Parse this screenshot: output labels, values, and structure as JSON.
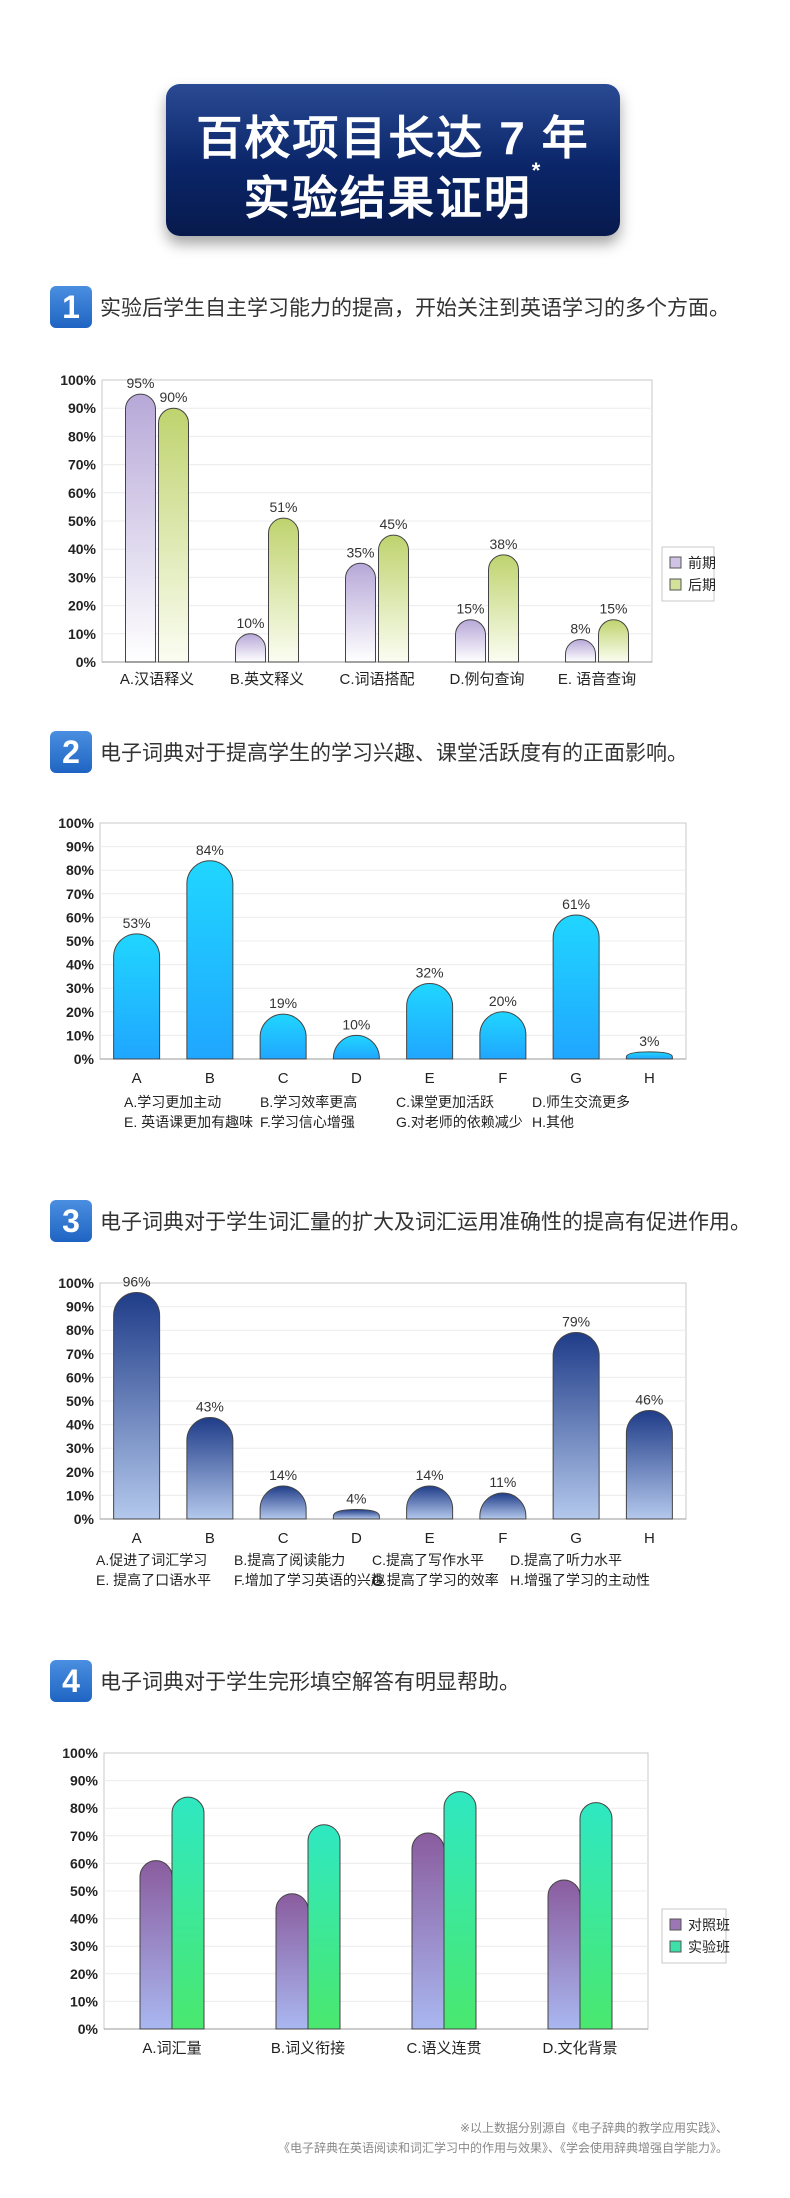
{
  "header": {
    "line1": "百校项目长达 7 年",
    "line2": "实验结果证明",
    "mark": "*"
  },
  "sections": [
    {
      "num": "1",
      "text": "实验后学生自主学习能力的提高，开始关注到英语学习的多个方面。"
    },
    {
      "num": "2",
      "text": "电子词典对于提高学生的学习兴趣、课堂活跃度有的正面影响。"
    },
    {
      "num": "3",
      "text": "电子词典对于学生词汇量的扩大及词汇运用准确性的提高有促进作用。"
    },
    {
      "num": "4",
      "text": "电子词典对于学生完形填空解答有明显帮助。"
    }
  ],
  "chart_data": [
    {
      "type": "bar",
      "categories": [
        "A.汉语释义",
        "B.英文释义",
        "C.词语搭配",
        "D.例句查询",
        "E. 语音查询"
      ],
      "series": [
        {
          "name": "前期",
          "values": [
            95,
            10,
            35,
            15,
            8
          ],
          "labels": [
            "95%",
            "10%",
            "35%",
            "15%",
            "8%"
          ]
        },
        {
          "name": "后期",
          "values": [
            90,
            51,
            45,
            38,
            15
          ],
          "labels": [
            "90%",
            "51%",
            "45%",
            "38%",
            "15%"
          ]
        }
      ],
      "yticks": [
        "0%",
        "10%",
        "20%",
        "30%",
        "40%",
        "50%",
        "60%",
        "70%",
        "80%",
        "90%",
        "100%"
      ],
      "ylim": [
        0,
        100
      ],
      "legend": "right",
      "colors": [
        "#cfc4e4",
        "#d3e19a"
      ]
    },
    {
      "type": "bar",
      "categories": [
        "A",
        "B",
        "C",
        "D",
        "E",
        "F",
        "G",
        "H"
      ],
      "series": [
        {
          "name": "",
          "values": [
            53,
            84,
            19,
            10,
            32,
            20,
            61,
            3
          ],
          "labels": [
            "53%",
            "84%",
            "19%",
            "10%",
            "32%",
            "20%",
            "61%",
            "3%"
          ]
        }
      ],
      "yticks": [
        "0%",
        "10%",
        "20%",
        "30%",
        "40%",
        "50%",
        "60%",
        "70%",
        "80%",
        "90%",
        "100%"
      ],
      "ylim": [
        0,
        100
      ],
      "notes": [
        [
          "A.学习更加主动",
          "B.学习效率更高",
          "C.课堂更加活跃",
          "D.师生交流更多"
        ],
        [
          "E. 英语课更加有趣味",
          "F.学习信心增强",
          "G.对老师的依赖减少",
          "H.其他"
        ]
      ],
      "colors": [
        "#1ed4ff"
      ]
    },
    {
      "type": "bar",
      "categories": [
        "A",
        "B",
        "C",
        "D",
        "E",
        "F",
        "G",
        "H"
      ],
      "series": [
        {
          "name": "",
          "values": [
            96,
            43,
            14,
            4,
            14,
            11,
            79,
            46
          ],
          "labels": [
            "96%",
            "43%",
            "14%",
            "4%",
            "14%",
            "11%",
            "79%",
            "46%"
          ]
        }
      ],
      "yticks": [
        "0%",
        "10%",
        "20%",
        "30%",
        "40%",
        "50%",
        "60%",
        "70%",
        "80%",
        "90%",
        "100%"
      ],
      "ylim": [
        0,
        100
      ],
      "notes": [
        [
          "A.促进了词汇学习",
          "B.提高了阅读能力",
          "C.提高了写作水平",
          "D.提高了听力水平"
        ],
        [
          "E. 提高了口语水平",
          "F.增加了学习英语的兴趣",
          "G.提高了学习的效率",
          "H.增强了学习的主动性"
        ]
      ],
      "colors": [
        "#23418c"
      ]
    },
    {
      "type": "bar",
      "categories": [
        "A.词汇量",
        "B.词义衔接",
        "C.语义连贯",
        "D.文化背景"
      ],
      "series": [
        {
          "name": "对照班",
          "values": [
            61,
            49,
            71,
            54
          ]
        },
        {
          "name": "实验班",
          "values": [
            84,
            74,
            86,
            82
          ]
        }
      ],
      "yticks": [
        "0%",
        "10%",
        "20%",
        "30%",
        "40%",
        "50%",
        "60%",
        "70%",
        "80%",
        "90%",
        "100%"
      ],
      "ylim": [
        0,
        100
      ],
      "legend": "right",
      "colors": [
        "#9b78b4",
        "#3de0a8"
      ]
    }
  ],
  "footnote": {
    "line1": "※以上数据分别源自《电子辞典的教学应用实践》、",
    "line2": "《电子辞典在英语阅读和词汇学习中的作用与效果》、《学会使用辞典增强自学能力》。"
  }
}
